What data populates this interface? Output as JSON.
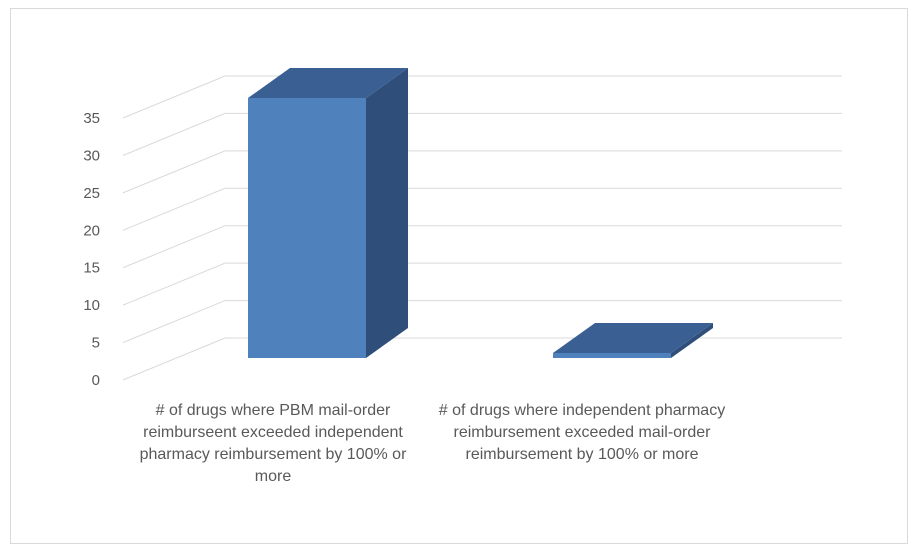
{
  "chart_data": {
    "type": "bar",
    "three_d": true,
    "categories": [
      "# of drugs where PBM mail-order reimburseent exceeded independent pharmacy reimbursement by 100% or more",
      "# of drugs where independent pharmacy reimbursement exceeded mail-order reimbursement by 100% or more"
    ],
    "values": [
      35,
      0
    ],
    "ylim": [
      0,
      35
    ],
    "yticks": [
      0,
      5,
      10,
      15,
      20,
      25,
      30,
      35
    ],
    "ytick_labels": [
      "0",
      "5",
      "10",
      "15",
      "20",
      "25",
      "30",
      "35"
    ],
    "grid": true,
    "legend": "none",
    "colors": {
      "bar_front": "#4f81bd",
      "bar_side": "#2f4f7a",
      "bar_top": "#3a5f93",
      "gridline": "#d9d9d9"
    }
  }
}
